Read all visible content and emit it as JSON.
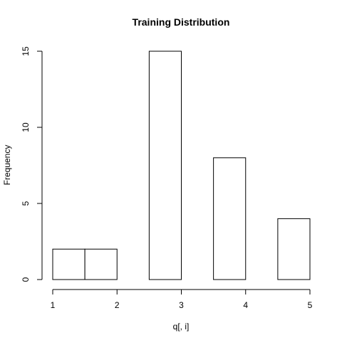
{
  "chart_data": {
    "type": "bar",
    "title": "Training Distribution",
    "xlabel": "q[, i]",
    "ylabel": "Frequency",
    "bins": [
      {
        "start": 1.0,
        "end": 1.5,
        "count": 2
      },
      {
        "start": 1.5,
        "end": 2.0,
        "count": 2
      },
      {
        "start": 2.0,
        "end": 2.5,
        "count": 0
      },
      {
        "start": 2.5,
        "end": 3.0,
        "count": 15
      },
      {
        "start": 3.0,
        "end": 3.5,
        "count": 0
      },
      {
        "start": 3.5,
        "end": 4.0,
        "count": 8
      },
      {
        "start": 4.0,
        "end": 4.5,
        "count": 0
      },
      {
        "start": 4.5,
        "end": 5.0,
        "count": 4
      }
    ],
    "xlim": [
      1,
      5
    ],
    "ylim": [
      0,
      15
    ],
    "x_ticks": [
      1,
      2,
      3,
      4,
      5
    ],
    "x_tick_labels": [
      "1",
      "2",
      "3",
      "4",
      "5"
    ],
    "y_ticks": [
      0,
      5,
      10,
      15
    ],
    "y_tick_labels": [
      "0",
      "5",
      "10",
      "15"
    ],
    "grid": false,
    "bar_fill": "#ffffff",
    "bar_stroke": "#000000"
  }
}
